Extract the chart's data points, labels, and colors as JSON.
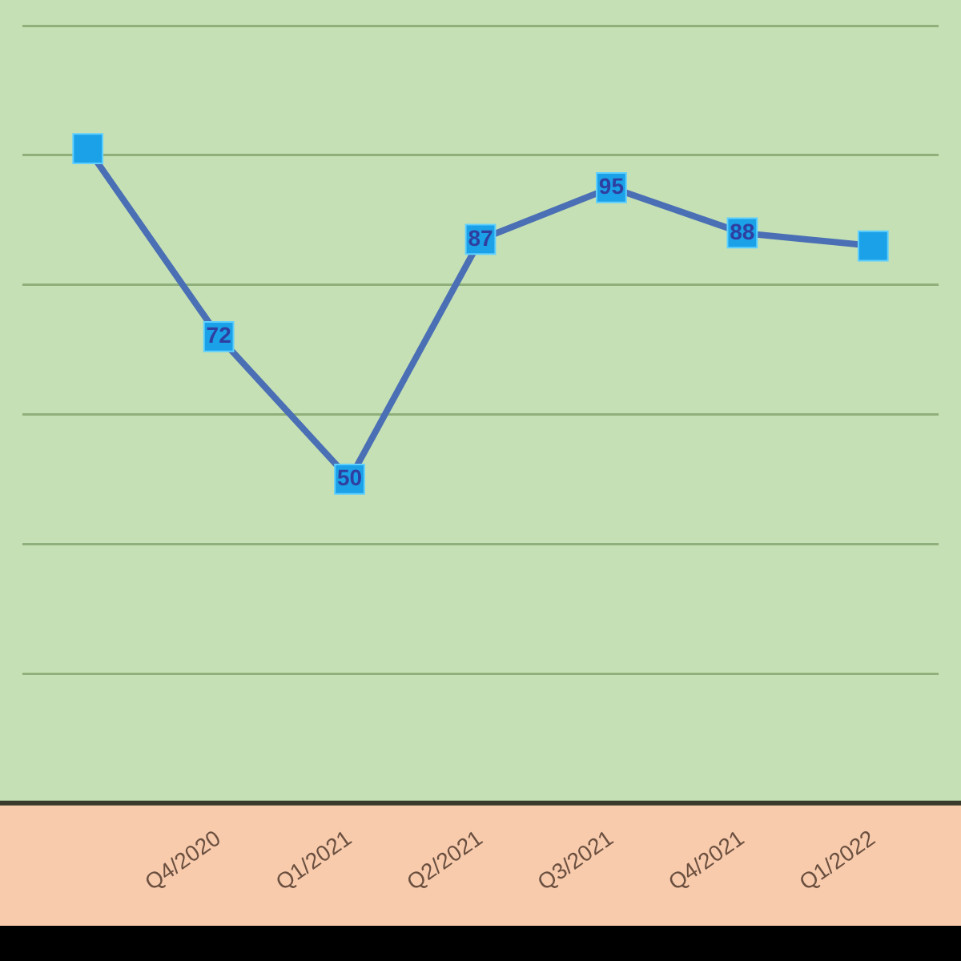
{
  "chart_data": {
    "type": "line",
    "categories": [
      null,
      "Q4/2020",
      "Q1/2021",
      "Q2/2021",
      "Q3/2021",
      "Q4/2021",
      "Q1/2022"
    ],
    "series": [
      {
        "color": "#4a6fb5",
        "values": [
          101,
          72,
          50,
          87,
          95,
          88,
          86
        ],
        "value_labels": [
          null,
          "72",
          "50",
          "87",
          "95",
          "88",
          null
        ]
      }
    ],
    "ylim": [
      0,
      120
    ],
    "yticks": [
      {
        "value": 0,
        "label": null
      },
      {
        "value": 20,
        "label": null
      },
      {
        "value": 40,
        "label": null
      },
      {
        "value": 60,
        "label": null
      },
      {
        "value": 80,
        "label": null
      },
      {
        "value": 100,
        "label": null
      },
      {
        "value": 120,
        "label": null
      }
    ],
    "grid": "y",
    "marker": "square",
    "legend": false,
    "tick_labels": "x",
    "line_style": "solid"
  }
}
